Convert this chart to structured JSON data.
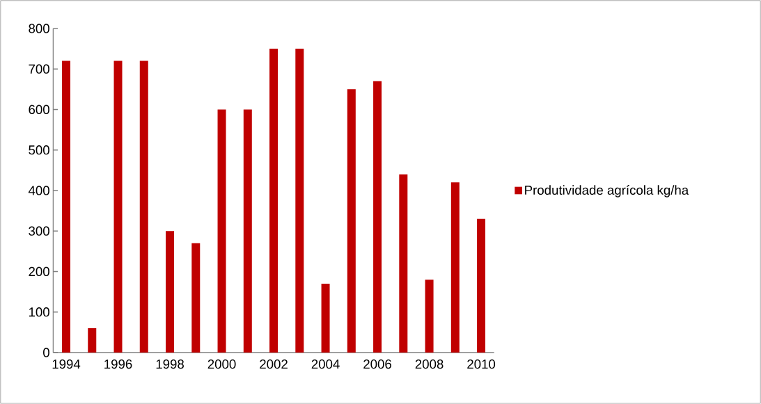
{
  "chart_data": {
    "type": "bar",
    "categories": [
      "1994",
      null,
      "1996",
      null,
      "1998",
      null,
      "2000",
      null,
      "2002",
      null,
      "2004",
      null,
      "2006",
      null,
      "2008",
      null,
      "2010"
    ],
    "series": [
      {
        "name": "Produtividade agrícola kg/ha",
        "color": "#c00000",
        "values": [
          720,
          60,
          720,
          720,
          300,
          270,
          600,
          600,
          750,
          750,
          170,
          650,
          670,
          440,
          180,
          420,
          330
        ]
      }
    ],
    "ylim": [
      0,
      800
    ],
    "yticks": [
      0,
      100,
      200,
      300,
      400,
      500,
      600,
      700,
      800
    ],
    "grid": false,
    "legend": "right"
  }
}
